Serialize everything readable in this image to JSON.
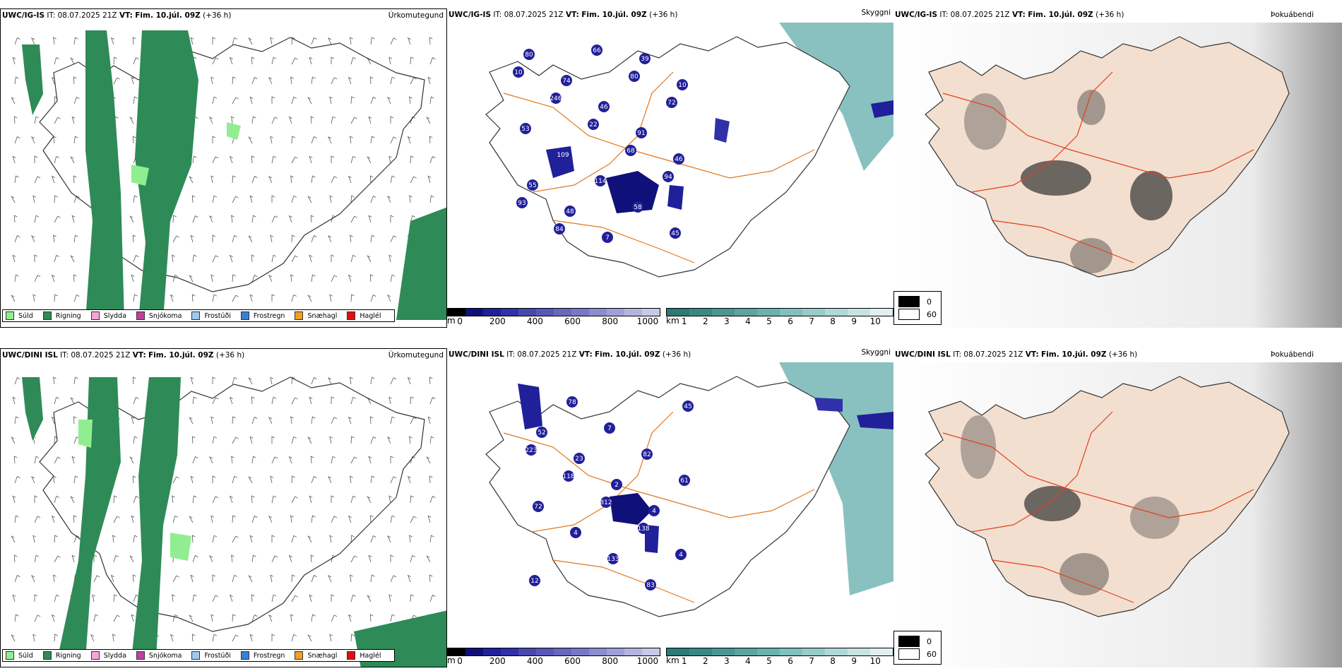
{
  "rows": [
    {
      "model": "UWC/IG-IS",
      "it_label": "IT:",
      "it_value": "08.07.2025 21Z",
      "vt_label": "VT:",
      "vt_value": "Fim. 10.júl. 09Z",
      "lead": "(+36 h)"
    },
    {
      "model": "UWC/DINI ISL",
      "it_label": "IT:",
      "it_value": "08.07.2025 21Z",
      "vt_label": "VT:",
      "vt_value": "Fim. 10.júl. 09Z",
      "lead": "(+36 h)"
    }
  ],
  "panel_titles": {
    "precip": "Úrkomutegund",
    "cloud": "Skyggni",
    "fog": "Þokuábendi"
  },
  "precip_legend": [
    {
      "label": "Súld",
      "color": "#90ee90"
    },
    {
      "label": "Rigning",
      "color": "#2e8b57"
    },
    {
      "label": "Slydda",
      "color": "#f4a6d7"
    },
    {
      "label": "Snjókoma",
      "color": "#c040a0"
    },
    {
      "label": "Frostúði",
      "color": "#9ec9f0"
    },
    {
      "label": "Frostregn",
      "color": "#3a7fd0"
    },
    {
      "label": "Snæhagl",
      "color": "#f0a020"
    },
    {
      "label": "Haglél",
      "color": "#e01010"
    }
  ],
  "ceiling_bar": {
    "unit": "m",
    "ticks": [
      "0",
      "200",
      "400",
      "600",
      "800",
      "1000"
    ],
    "colors": [
      "#000000",
      "#10107a",
      "#20209a",
      "#3030a8",
      "#4848b0",
      "#5858b8",
      "#6868c0",
      "#7878c8",
      "#8c8cd0",
      "#a0a0d8",
      "#b4b4e0",
      "#c8c8e8"
    ]
  },
  "visibility_bar": {
    "unit": "km",
    "ticks": [
      "1",
      "2",
      "3",
      "4",
      "5",
      "6",
      "7",
      "8",
      "9",
      "10"
    ],
    "colors": [
      "#2a7a78",
      "#3a8886",
      "#4a9694",
      "#5aa4a2",
      "#6ab2b0",
      "#80c0be",
      "#98ccca",
      "#b0d8d6",
      "#c8e4e2",
      "#e0f0ef"
    ]
  },
  "fog_legend": [
    {
      "value": "0",
      "color": "#000000"
    },
    {
      "value": "60",
      "color": "#ffffff"
    }
  ],
  "cloud_labels_top": [
    "10",
    "246",
    "22",
    "68",
    "94",
    "93",
    "84",
    "66",
    "80",
    "72",
    "53",
    "109",
    "114",
    "58",
    "45",
    "80",
    "74",
    "46",
    "91",
    "46",
    "55",
    "48",
    "7",
    "39",
    "10"
  ],
  "cloud_labels_bottom": [
    "223",
    "118",
    "812",
    "138",
    "4",
    "12",
    "78",
    "7",
    "82",
    "61",
    "72",
    "4",
    "133",
    "83",
    "45",
    "52",
    "23",
    "2",
    "4"
  ]
}
